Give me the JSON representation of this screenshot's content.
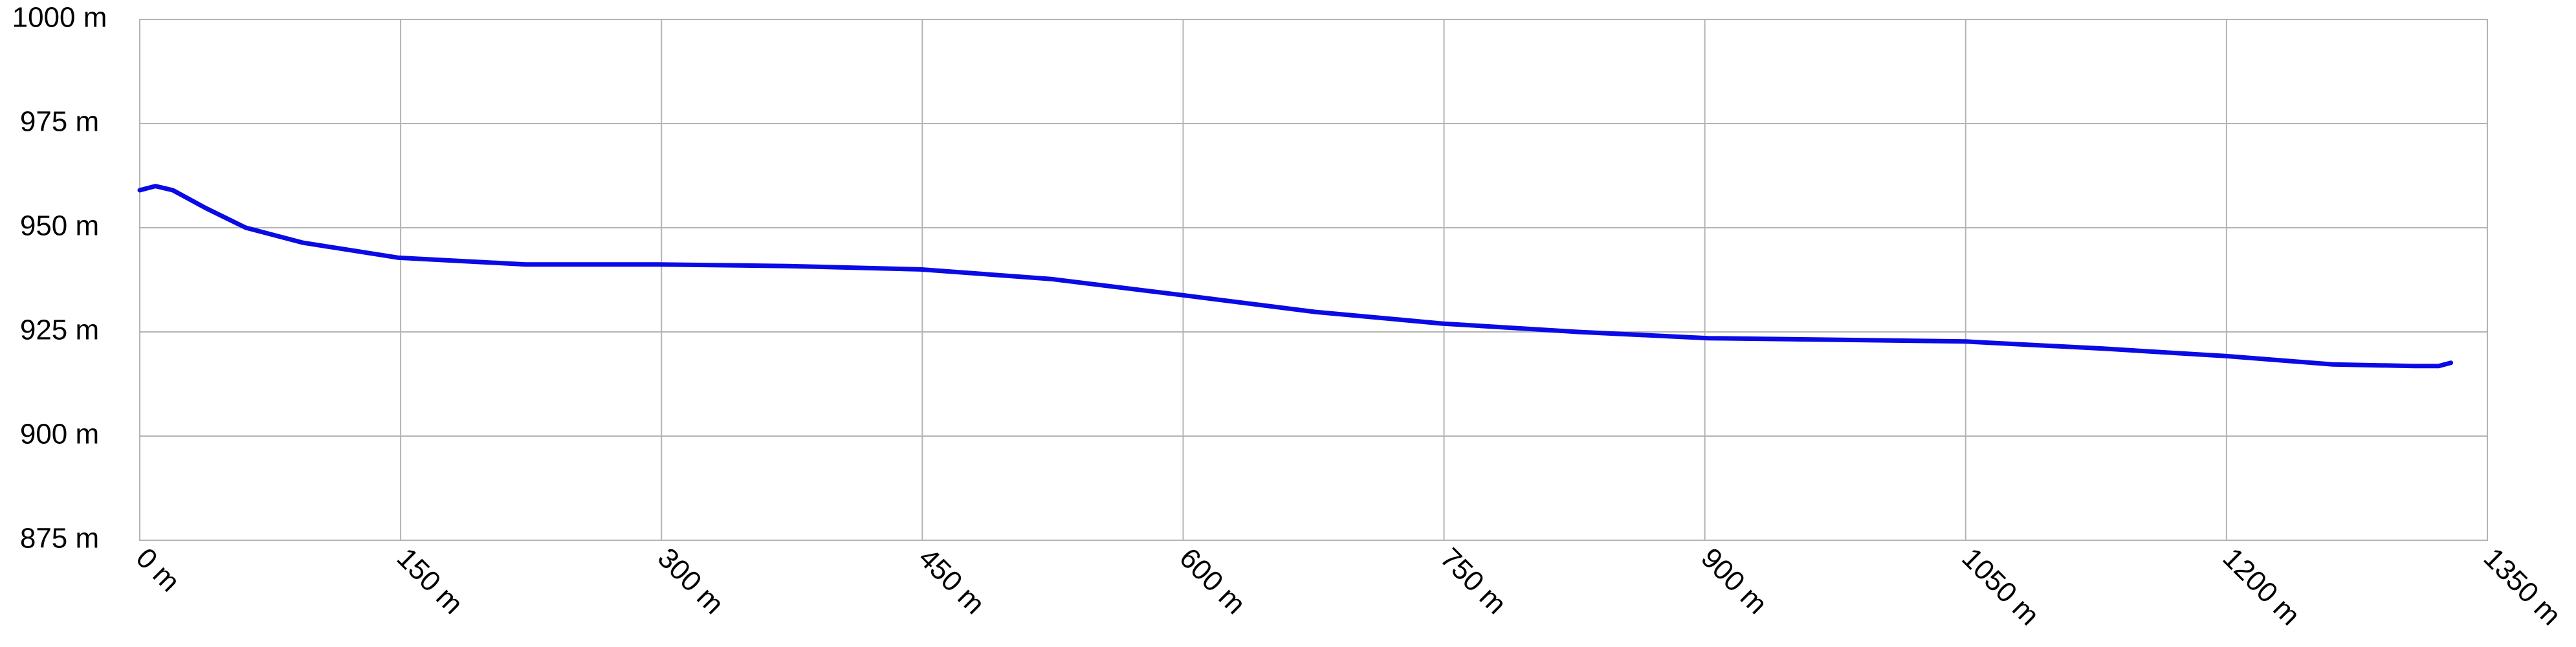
{
  "chart_data": {
    "type": "line",
    "x": [
      0,
      9,
      19,
      38,
      61,
      94,
      149,
      222,
      298,
      373,
      449,
      524,
      600,
      676,
      749,
      827,
      902,
      978,
      1050,
      1129,
      1200,
      1261,
      1308,
      1322,
      1329
    ],
    "values": [
      959,
      960,
      959,
      954.7,
      950,
      946.4,
      942.8,
      941.2,
      941.2,
      940.8,
      940,
      937.7,
      933.8,
      929.8,
      927,
      925,
      923.5,
      923.1,
      922.7,
      921,
      919.2,
      917.2,
      916.8,
      916.8,
      917.6
    ],
    "color": "#0a0ae6",
    "xlim": [
      0,
      1350
    ],
    "ylim": [
      875,
      1000
    ],
    "xticks": [
      {
        "value": 0,
        "label": "0 m"
      },
      {
        "value": 150,
        "label": "150 m"
      },
      {
        "value": 300,
        "label": "300 m"
      },
      {
        "value": 450,
        "label": "450 m"
      },
      {
        "value": 600,
        "label": "600 m"
      },
      {
        "value": 750,
        "label": "750 m"
      },
      {
        "value": 900,
        "label": "900 m"
      },
      {
        "value": 1050,
        "label": "1050 m"
      },
      {
        "value": 1200,
        "label": "1200 m"
      },
      {
        "value": 1350,
        "label": "1350 m"
      }
    ],
    "yticks": [
      {
        "value": 875,
        "label": "875 m"
      },
      {
        "value": 900,
        "label": "900 m"
      },
      {
        "value": 925,
        "label": "925 m"
      },
      {
        "value": 950,
        "label": "950 m"
      },
      {
        "value": 975,
        "label": "975 m"
      },
      {
        "value": 1000,
        "label": "1000 m"
      }
    ],
    "grid": true
  }
}
